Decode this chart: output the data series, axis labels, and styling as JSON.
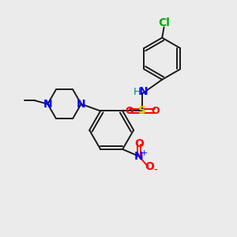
{
  "bg_color": "#ebebeb",
  "bond_color": "#1a1a1a",
  "N_color": "#0000ff",
  "O_color": "#ff0000",
  "S_color": "#cccc00",
  "Cl_color": "#00aa00",
  "H_color": "#008080",
  "figsize": [
    3.0,
    3.0
  ],
  "dpi": 100,
  "xlim": [
    0,
    10
  ],
  "ylim": [
    0,
    10
  ]
}
